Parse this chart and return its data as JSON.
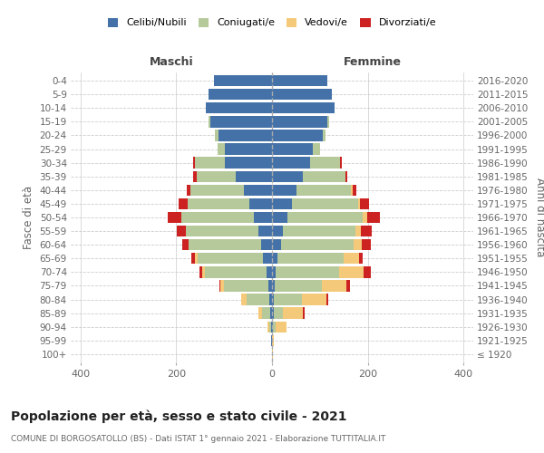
{
  "age_groups": [
    "100+",
    "95-99",
    "90-94",
    "85-89",
    "80-84",
    "75-79",
    "70-74",
    "65-69",
    "60-64",
    "55-59",
    "50-54",
    "45-49",
    "40-44",
    "35-39",
    "30-34",
    "25-29",
    "20-24",
    "15-19",
    "10-14",
    "5-9",
    "0-4"
  ],
  "birth_years": [
    "≤ 1920",
    "1921-1925",
    "1926-1930",
    "1931-1935",
    "1936-1940",
    "1941-1945",
    "1946-1950",
    "1951-1955",
    "1956-1960",
    "1961-1965",
    "1966-1970",
    "1971-1975",
    "1976-1980",
    "1981-1985",
    "1986-1990",
    "1991-1995",
    "1996-2000",
    "2001-2005",
    "2006-2010",
    "2011-2015",
    "2016-2020"
  ],
  "maschi": {
    "celibi": [
      0,
      1,
      2,
      4,
      5,
      8,
      12,
      18,
      22,
      28,
      38,
      48,
      58,
      75,
      98,
      98,
      112,
      128,
      138,
      132,
      122
    ],
    "coniugati": [
      0,
      1,
      4,
      16,
      48,
      92,
      128,
      138,
      152,
      152,
      152,
      128,
      112,
      82,
      62,
      16,
      8,
      4,
      0,
      0,
      0
    ],
    "vedovi": [
      0,
      0,
      4,
      8,
      12,
      8,
      6,
      4,
      0,
      0,
      0,
      0,
      0,
      0,
      0,
      0,
      0,
      0,
      0,
      0,
      0
    ],
    "divorziati": [
      0,
      0,
      0,
      0,
      0,
      2,
      5,
      8,
      14,
      18,
      28,
      18,
      8,
      8,
      4,
      0,
      0,
      0,
      0,
      0,
      0
    ]
  },
  "femmine": {
    "nubili": [
      0,
      0,
      2,
      4,
      4,
      6,
      8,
      12,
      18,
      22,
      32,
      42,
      52,
      65,
      80,
      85,
      105,
      115,
      130,
      125,
      115
    ],
    "coniugate": [
      0,
      0,
      6,
      18,
      58,
      98,
      132,
      138,
      152,
      152,
      158,
      138,
      112,
      88,
      62,
      16,
      6,
      4,
      0,
      0,
      0
    ],
    "vedove": [
      1,
      4,
      22,
      42,
      52,
      52,
      52,
      32,
      18,
      12,
      8,
      4,
      4,
      0,
      0,
      0,
      0,
      0,
      0,
      0,
      0
    ],
    "divorziate": [
      0,
      0,
      0,
      4,
      4,
      6,
      14,
      8,
      18,
      22,
      28,
      18,
      8,
      4,
      4,
      0,
      0,
      0,
      0,
      0,
      0
    ]
  },
  "colors": {
    "celibi": "#4472a8",
    "coniugati": "#b5c99a",
    "vedovi": "#f5c97a",
    "divorziati": "#cc2222"
  },
  "xlim": 420,
  "title": "Popolazione per età, sesso e stato civile - 2021",
  "subtitle": "COMUNE DI BORGOSATOLLO (BS) - Dati ISTAT 1° gennaio 2021 - Elaborazione TUTTITALIA.IT",
  "xlabel_maschi": "Maschi",
  "xlabel_femmine": "Femmine",
  "ylabel": "Fasce di età",
  "ylabel_right": "Anni di nascita",
  "legend_labels": [
    "Celibi/Nubili",
    "Coniugati/e",
    "Vedovi/e",
    "Divorziati/e"
  ],
  "background_color": "#ffffff"
}
